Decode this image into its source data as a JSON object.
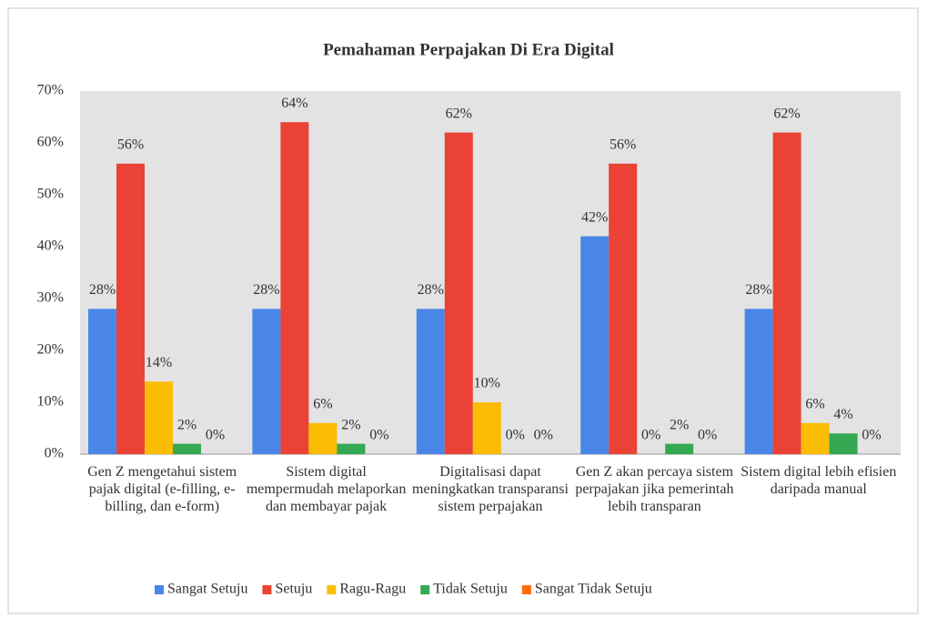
{
  "chart_data": {
    "type": "bar",
    "title": "Pemahaman Perpajakan Di Era Digital",
    "categories": [
      "Gen Z mengetahui sistem pajak digital (e-filling, e-billing, dan e-form)",
      "Sistem digital mempermudah melaporkan dan membayar pajak",
      "Digitalisasi dapat meningkatkan transparansi sistem perpajakan",
      "Gen Z akan percaya sistem perpajakan jika pemerintah lebih transparan",
      "Sistem digital lebih efisien daripada manual"
    ],
    "series": [
      {
        "name": "Sangat Setuju",
        "color": "#4a86e8",
        "values": [
          28,
          28,
          28,
          42,
          28
        ],
        "value_labels": [
          "28%",
          "28%",
          "28%",
          "42%",
          "28%"
        ]
      },
      {
        "name": "Setuju",
        "color": "#ea4335",
        "values": [
          56,
          64,
          62,
          56,
          62
        ],
        "value_labels": [
          "56%",
          "64%",
          "62%",
          "56%",
          "62%"
        ]
      },
      {
        "name": "Ragu-Ragu",
        "color": "#fbbc04",
        "values": [
          14,
          6,
          10,
          0,
          6
        ],
        "value_labels": [
          "14%",
          "6%",
          "10%",
          "0%",
          "6%"
        ]
      },
      {
        "name": "Tidak Setuju",
        "color": "#34a853",
        "values": [
          2,
          2,
          0,
          2,
          4
        ],
        "value_labels": [
          "2%",
          "2%",
          "0%",
          "2%",
          "4%"
        ]
      },
      {
        "name": "Sangat Tidak Setuju",
        "color": "#ff6d01",
        "values": [
          0,
          0,
          0,
          0,
          0
        ],
        "value_labels": [
          "0%",
          "0%",
          "0%",
          "0%",
          "0%"
        ]
      }
    ],
    "ylim": [
      0,
      70
    ],
    "yticks": [
      {
        "value": 0,
        "label": "0%"
      },
      {
        "value": 10,
        "label": "10%"
      },
      {
        "value": 20,
        "label": "20%"
      },
      {
        "value": 30,
        "label": "30%"
      },
      {
        "value": 40,
        "label": "40%"
      },
      {
        "value": 50,
        "label": "50%"
      },
      {
        "value": 60,
        "label": "60%"
      },
      {
        "value": 70,
        "label": "70%"
      }
    ],
    "grid": false,
    "legend": "bottom"
  }
}
